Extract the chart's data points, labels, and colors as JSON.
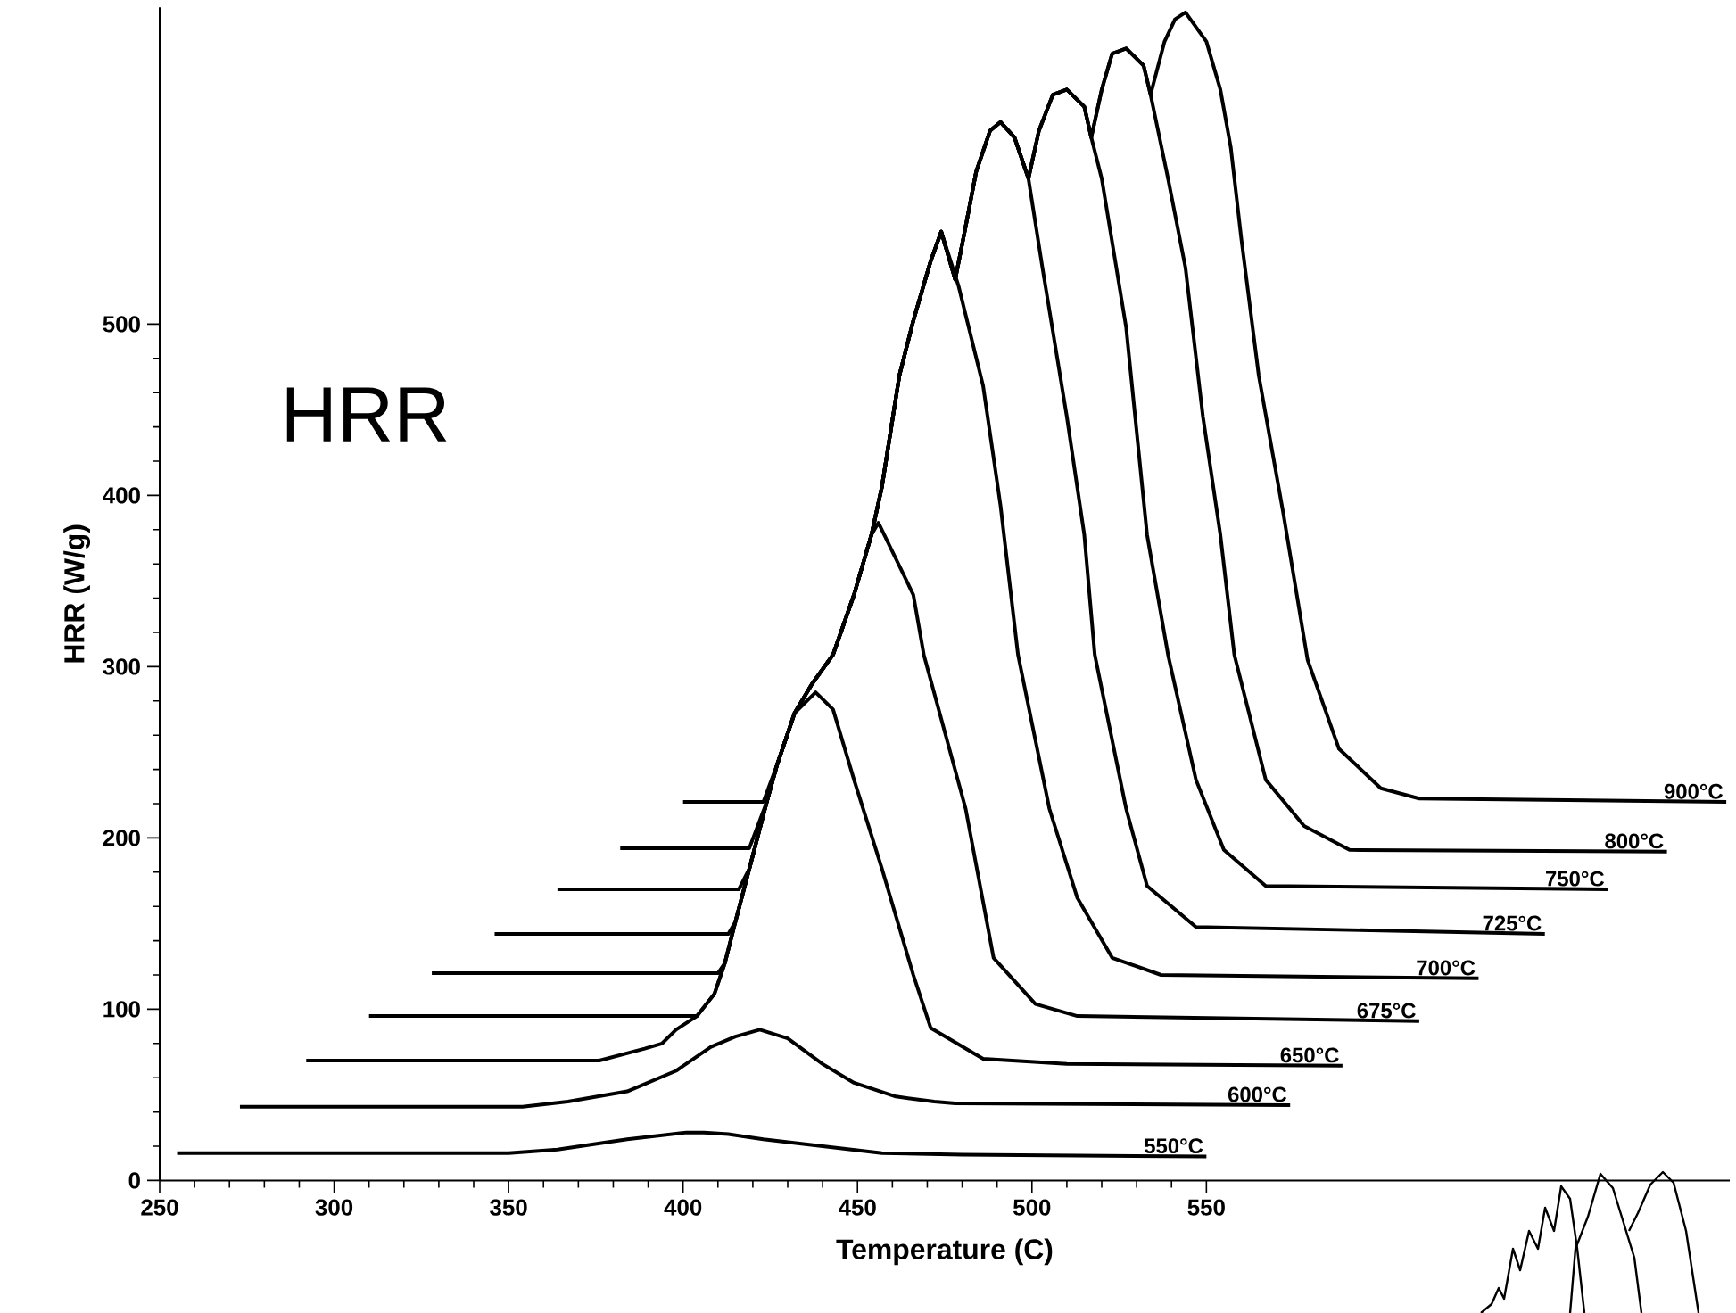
{
  "chart_data": {
    "type": "line",
    "xlabel": "Temperature (C)",
    "ylabel": "HRR (W/g)",
    "annotations": [
      "HRR"
    ],
    "xlim": [
      250,
      700
    ],
    "ylim": [
      0,
      685
    ],
    "xticks": [
      250,
      300,
      350,
      400,
      450,
      500,
      550
    ],
    "yticks": [
      0,
      100,
      200,
      300,
      400,
      500
    ],
    "series": [
      {
        "name": "550°C",
        "color": "#000000",
        "x": [
          255,
          350,
          364,
          384,
          401,
          406,
          413,
          423,
          440,
          457,
          480,
          550
        ],
        "values": [
          16,
          16,
          18,
          24,
          28,
          28,
          27,
          24,
          20,
          16,
          15,
          14
        ]
      },
      {
        "name": "600°C",
        "color": "#000000",
        "x": [
          273,
          354,
          367,
          384,
          398,
          408,
          415,
          422,
          430,
          440,
          449,
          461,
          472,
          478,
          574
        ],
        "values": [
          43,
          43,
          46,
          52,
          64,
          78,
          84,
          88,
          83,
          68,
          57,
          49,
          46,
          45,
          44
        ]
      },
      {
        "name": "650°C",
        "color": "#000000",
        "x": [
          292,
          376,
          389,
          394,
          398,
          404,
          409,
          412,
          415,
          419,
          424,
          427,
          432,
          438,
          443,
          449,
          457,
          466,
          471,
          486,
          510,
          589
        ],
        "values": [
          70,
          70,
          77,
          80,
          88,
          96,
          109,
          127,
          151,
          182,
          221,
          243,
          273,
          285,
          275,
          234,
          182,
          120,
          89,
          71,
          68,
          67
        ]
      },
      {
        "name": "675°C",
        "color": "#000000",
        "x": [
          310,
          404,
          409,
          412,
          415,
          419,
          424,
          427,
          432,
          437,
          443,
          449,
          454,
          456,
          466,
          469,
          481,
          489,
          501,
          513,
          611
        ],
        "values": [
          96,
          96,
          109,
          127,
          151,
          182,
          221,
          243,
          273,
          290,
          307,
          342,
          377,
          384,
          342,
          307,
          217,
          130,
          103,
          96,
          93
        ]
      },
      {
        "name": "700°C",
        "color": "#000000",
        "x": [
          328,
          410,
          412,
          415,
          419,
          424,
          427,
          432,
          437,
          443,
          449,
          454,
          457,
          462,
          466,
          471,
          474,
          479,
          486,
          491,
          496,
          505,
          513,
          523,
          537,
          628
        ],
        "values": [
          121,
          121,
          127,
          151,
          182,
          221,
          243,
          273,
          290,
          307,
          342,
          377,
          405,
          470,
          502,
          537,
          554,
          522,
          464,
          394,
          307,
          217,
          165,
          130,
          120,
          118
        ]
      },
      {
        "name": "725°C",
        "color": "#000000",
        "x": [
          346,
          413,
          415,
          419,
          424,
          427,
          432,
          437,
          443,
          449,
          454,
          457,
          462,
          466,
          471,
          474,
          478,
          481,
          484,
          488,
          491,
          495,
          499,
          503,
          510,
          515,
          518,
          527,
          533,
          547,
          647
        ],
        "values": [
          144,
          144,
          151,
          182,
          221,
          243,
          273,
          290,
          307,
          342,
          377,
          405,
          470,
          502,
          537,
          554,
          526,
          557,
          589,
          613,
          618,
          609,
          585,
          533,
          446,
          377,
          307,
          217,
          172,
          148,
          144
        ]
      },
      {
        "name": "750°C",
        "color": "#000000",
        "x": [
          364,
          416,
          419,
          424,
          427,
          432,
          437,
          443,
          449,
          454,
          457,
          462,
          466,
          471,
          474,
          478,
          481,
          484,
          488,
          491,
          495,
          499,
          502,
          506,
          510,
          515,
          517,
          520,
          527,
          533,
          539,
          547,
          555,
          567,
          665
        ],
        "values": [
          170,
          170,
          182,
          221,
          243,
          273,
          290,
          307,
          342,
          377,
          405,
          470,
          502,
          537,
          554,
          526,
          557,
          589,
          613,
          618,
          609,
          585,
          613,
          634,
          637,
          627,
          609,
          585,
          498,
          377,
          307,
          234,
          193,
          172,
          170
        ]
      },
      {
        "name": "800°C",
        "color": "#000000",
        "x": [
          382,
          419,
          424,
          427,
          432,
          437,
          443,
          449,
          454,
          457,
          462,
          466,
          471,
          474,
          478,
          481,
          484,
          488,
          491,
          495,
          499,
          502,
          506,
          510,
          515,
          517,
          520,
          523,
          527,
          532,
          534,
          539,
          544,
          549,
          554,
          558,
          567,
          578,
          591,
          682
        ],
        "values": [
          194,
          194,
          221,
          243,
          273,
          290,
          307,
          342,
          377,
          405,
          470,
          502,
          537,
          554,
          526,
          557,
          589,
          613,
          618,
          609,
          585,
          613,
          634,
          637,
          627,
          609,
          637,
          658,
          661,
          651,
          634,
          585,
          533,
          446,
          377,
          307,
          234,
          207,
          193,
          192
        ]
      },
      {
        "name": "900°C",
        "color": "#000000",
        "x": [
          400,
          423,
          427,
          432,
          437,
          443,
          449,
          454,
          457,
          462,
          466,
          471,
          474,
          478,
          481,
          484,
          488,
          491,
          495,
          499,
          502,
          506,
          510,
          515,
          517,
          520,
          523,
          527,
          532,
          534,
          538,
          541,
          544,
          550,
          554,
          557,
          560,
          565,
          572,
          579,
          588,
          600,
          611,
          699
        ],
        "values": [
          221,
          221,
          243,
          273,
          290,
          307,
          342,
          377,
          405,
          470,
          502,
          537,
          554,
          526,
          557,
          589,
          613,
          618,
          609,
          585,
          613,
          634,
          637,
          627,
          609,
          637,
          658,
          661,
          651,
          634,
          665,
          678,
          682,
          665,
          637,
          603,
          550,
          470,
          390,
          304,
          252,
          229,
          223,
          221
        ]
      }
    ]
  }
}
